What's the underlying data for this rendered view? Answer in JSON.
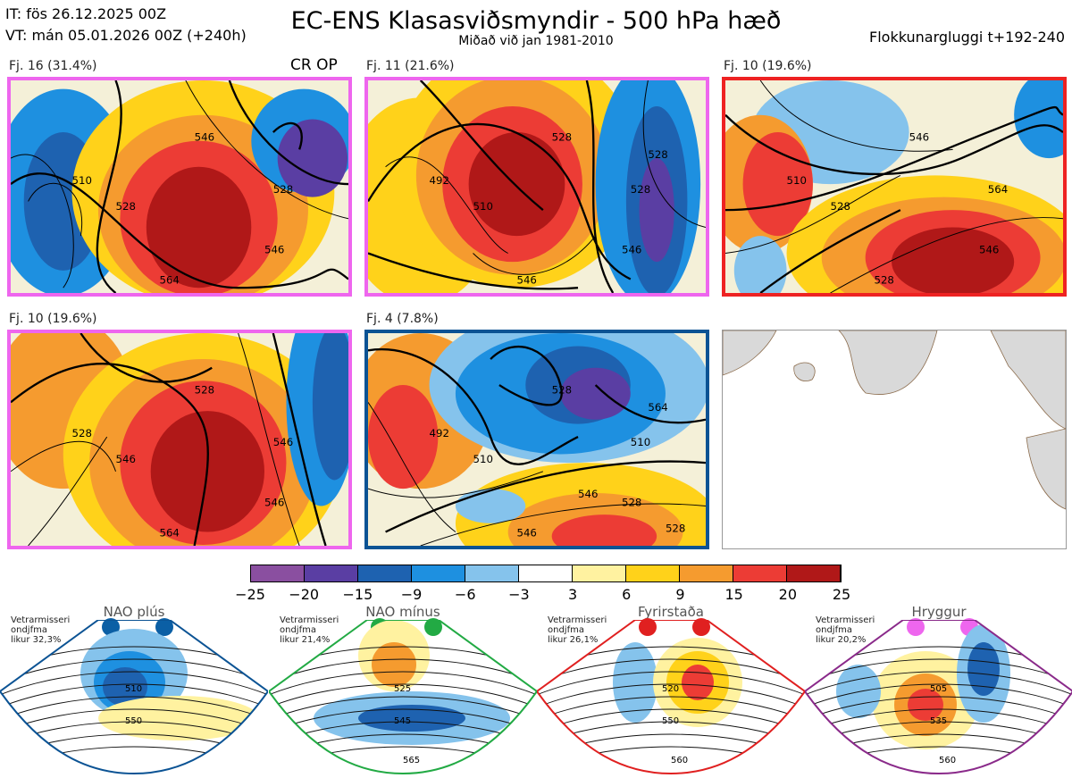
{
  "header": {
    "it": "IT: fös 26.12.2025 00Z",
    "vt": "VT: mán 05.01.2026 00Z  (+240h)",
    "title": "EC-ENS Klasasviðsmyndir - 500 hPa hæð",
    "subtitle": "Miðað við jan 1981-2010",
    "window": "Flokkunargluggi t+192-240"
  },
  "panels": [
    {
      "label": "Fj. 16 (31.4%)",
      "extra": "CR OP",
      "border": "#ee66ee",
      "contours": [
        "510",
        "528",
        "546",
        "528",
        "546",
        "564"
      ]
    },
    {
      "label": "Fj. 11 (21.6%)",
      "extra": "",
      "border": "#ee66ee",
      "contours": [
        "492",
        "510",
        "528",
        "528",
        "546",
        "546",
        "528"
      ]
    },
    {
      "label": "Fj. 10 (19.6%)",
      "extra": "",
      "border": "#ee2222",
      "contours": [
        "510",
        "528",
        "546",
        "564",
        "546",
        "528"
      ]
    },
    {
      "label": "Fj. 10 (19.6%)",
      "extra": "",
      "border": "#ee66ee",
      "contours": [
        "528",
        "546",
        "528",
        "546",
        "546",
        "564"
      ]
    },
    {
      "label": "Fj. 4 (7.8%)",
      "extra": "",
      "border": "#0b5394",
      "contours": [
        "492",
        "510",
        "528",
        "510",
        "528",
        "546",
        "564",
        "546",
        "528"
      ]
    }
  ],
  "chart_data": {
    "type": "heatmap",
    "colorbar": {
      "ticks": [
        "−25",
        "−20",
        "−15",
        "−9",
        "−6",
        "−3",
        "3",
        "6",
        "9",
        "15",
        "20",
        "25"
      ],
      "colors": [
        "#8a4fa0",
        "#5a3ea3",
        "#1e62b0",
        "#1e90e0",
        "#85c3ec",
        "#ffffff",
        "#fff2a0",
        "#ffd21a",
        "#f59b2f",
        "#ec3c35",
        "#b01818"
      ]
    }
  },
  "regimes": [
    {
      "title": "NAO plús",
      "meta": [
        "Vetrarmisseri",
        "ondjfma",
        "likur 32,3%"
      ],
      "color": "#0b5fa5",
      "border": "#0b5394",
      "labels": [
        "510",
        "550"
      ]
    },
    {
      "title": "NAO mínus",
      "meta": [
        "Vetrarmisseri",
        "ondjfma",
        "likur 21,4%"
      ],
      "color": "#22aa44",
      "border": "#22aa44",
      "labels": [
        "525",
        "545",
        "565"
      ]
    },
    {
      "title": "Fyrirstaða",
      "meta": [
        "Vetrarmisseri",
        "ondjfma",
        "likur 26,1%"
      ],
      "color": "#e02020",
      "border": "#e02020",
      "labels": [
        "520",
        "550",
        "560"
      ]
    },
    {
      "title": "Hryggur",
      "meta": [
        "Vetrarmisseri",
        "ondjfma",
        "likur 20,2%"
      ],
      "color": "#ee66ee",
      "border": "#8a2a8a",
      "labels": [
        "505",
        "535",
        "560"
      ]
    }
  ]
}
